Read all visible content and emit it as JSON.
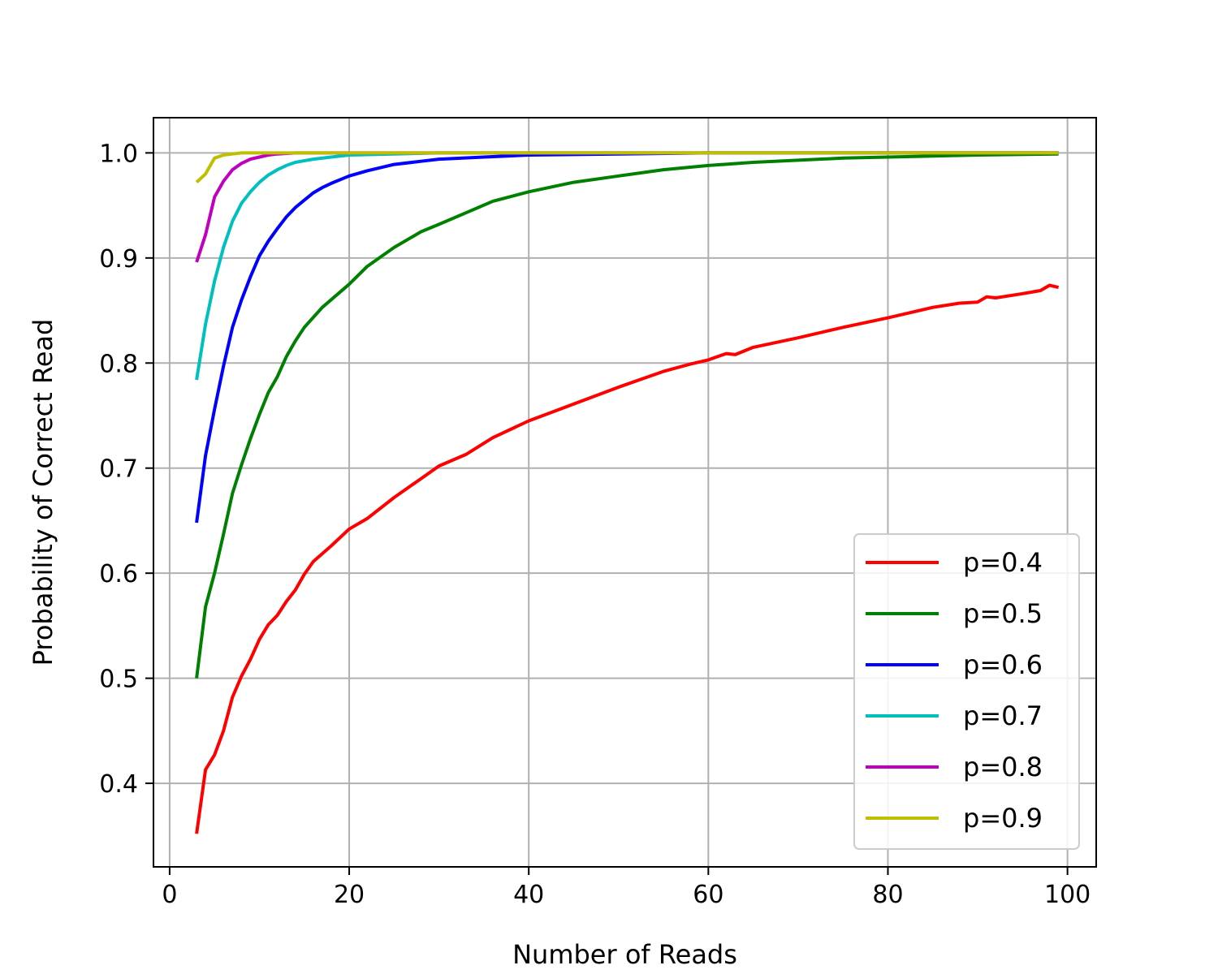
{
  "chart_data": {
    "type": "line",
    "xlabel": "Number of Reads",
    "ylabel": "Probability of Correct Read",
    "xlim": [
      -1.8,
      103.2
    ],
    "ylim": [
      0.3205,
      1.0335
    ],
    "xticks": [
      0,
      20,
      40,
      60,
      80,
      100
    ],
    "yticks": [
      0.4,
      0.5,
      0.6,
      0.7,
      0.8,
      0.9,
      1.0
    ],
    "xtick_labels": [
      "0",
      "20",
      "40",
      "60",
      "80",
      "100"
    ],
    "ytick_labels": [
      "0.4",
      "0.5",
      "0.6",
      "0.7",
      "0.8",
      "0.9",
      "1.0"
    ],
    "grid": true,
    "legend_position": "lower-right",
    "series": [
      {
        "name": "p=0.4",
        "color": "#ff0000",
        "points": [
          [
            3,
            0.352
          ],
          [
            4,
            0.413
          ],
          [
            5,
            0.427
          ],
          [
            6,
            0.45
          ],
          [
            7,
            0.482
          ],
          [
            8,
            0.502
          ],
          [
            9,
            0.518
          ],
          [
            10,
            0.537
          ],
          [
            11,
            0.551
          ],
          [
            12,
            0.56
          ],
          [
            13,
            0.573
          ],
          [
            14,
            0.584
          ],
          [
            15,
            0.599
          ],
          [
            16,
            0.611
          ],
          [
            18,
            0.626
          ],
          [
            20,
            0.642
          ],
          [
            22,
            0.652
          ],
          [
            25,
            0.672
          ],
          [
            28,
            0.69
          ],
          [
            30,
            0.702
          ],
          [
            33,
            0.713
          ],
          [
            36,
            0.729
          ],
          [
            40,
            0.745
          ],
          [
            45,
            0.761
          ],
          [
            50,
            0.777
          ],
          [
            55,
            0.792
          ],
          [
            58,
            0.799
          ],
          [
            60,
            0.803
          ],
          [
            62,
            0.809
          ],
          [
            63,
            0.808
          ],
          [
            65,
            0.815
          ],
          [
            70,
            0.824
          ],
          [
            75,
            0.834
          ],
          [
            80,
            0.843
          ],
          [
            85,
            0.853
          ],
          [
            88,
            0.857
          ],
          [
            90,
            0.858
          ],
          [
            91,
            0.863
          ],
          [
            92,
            0.862
          ],
          [
            95,
            0.866
          ],
          [
            97,
            0.869
          ],
          [
            98,
            0.874
          ],
          [
            99,
            0.872
          ]
        ]
      },
      {
        "name": "p=0.5",
        "color": "#008000",
        "points": [
          [
            3,
            0.5
          ],
          [
            4,
            0.568
          ],
          [
            5,
            0.6
          ],
          [
            6,
            0.637
          ],
          [
            7,
            0.676
          ],
          [
            8,
            0.703
          ],
          [
            9,
            0.728
          ],
          [
            10,
            0.751
          ],
          [
            11,
            0.772
          ],
          [
            12,
            0.787
          ],
          [
            13,
            0.806
          ],
          [
            14,
            0.821
          ],
          [
            15,
            0.834
          ],
          [
            17,
            0.853
          ],
          [
            20,
            0.875
          ],
          [
            22,
            0.892
          ],
          [
            25,
            0.91
          ],
          [
            28,
            0.925
          ],
          [
            30,
            0.932
          ],
          [
            33,
            0.943
          ],
          [
            36,
            0.954
          ],
          [
            40,
            0.963
          ],
          [
            45,
            0.972
          ],
          [
            50,
            0.978
          ],
          [
            55,
            0.984
          ],
          [
            60,
            0.988
          ],
          [
            65,
            0.991
          ],
          [
            70,
            0.993
          ],
          [
            75,
            0.995
          ],
          [
            80,
            0.996
          ],
          [
            90,
            0.998
          ],
          [
            99,
            0.999
          ]
        ]
      },
      {
        "name": "p=0.6",
        "color": "#0000ff",
        "points": [
          [
            3,
            0.648
          ],
          [
            4,
            0.712
          ],
          [
            5,
            0.756
          ],
          [
            6,
            0.797
          ],
          [
            7,
            0.834
          ],
          [
            8,
            0.86
          ],
          [
            9,
            0.882
          ],
          [
            10,
            0.902
          ],
          [
            11,
            0.916
          ],
          [
            12,
            0.928
          ],
          [
            13,
            0.939
          ],
          [
            14,
            0.948
          ],
          [
            15,
            0.955
          ],
          [
            16,
            0.962
          ],
          [
            17,
            0.967
          ],
          [
            18,
            0.971
          ],
          [
            20,
            0.978
          ],
          [
            22,
            0.983
          ],
          [
            25,
            0.989
          ],
          [
            28,
            0.992
          ],
          [
            30,
            0.994
          ],
          [
            35,
            0.996
          ],
          [
            40,
            0.998
          ],
          [
            50,
            0.999
          ],
          [
            60,
            1.0
          ],
          [
            99,
            1.0
          ]
        ]
      },
      {
        "name": "p=0.7",
        "color": "#00bfbf",
        "points": [
          [
            3,
            0.784
          ],
          [
            4,
            0.837
          ],
          [
            5,
            0.878
          ],
          [
            6,
            0.91
          ],
          [
            7,
            0.935
          ],
          [
            8,
            0.952
          ],
          [
            9,
            0.963
          ],
          [
            10,
            0.972
          ],
          [
            11,
            0.979
          ],
          [
            12,
            0.984
          ],
          [
            13,
            0.988
          ],
          [
            14,
            0.991
          ],
          [
            16,
            0.994
          ],
          [
            18,
            0.996
          ],
          [
            20,
            0.998
          ],
          [
            25,
            0.999
          ],
          [
            30,
            1.0
          ],
          [
            99,
            1.0
          ]
        ]
      },
      {
        "name": "p=0.8",
        "color": "#bf00bf",
        "points": [
          [
            3,
            0.896
          ],
          [
            4,
            0.922
          ],
          [
            5,
            0.958
          ],
          [
            6,
            0.973
          ],
          [
            7,
            0.984
          ],
          [
            8,
            0.99
          ],
          [
            9,
            0.994
          ],
          [
            10,
            0.996
          ],
          [
            11,
            0.998
          ],
          [
            12,
            0.999
          ],
          [
            14,
            1.0
          ],
          [
            99,
            1.0
          ]
        ]
      },
      {
        "name": "p=0.9",
        "color": "#bfbf00",
        "points": [
          [
            3,
            0.972
          ],
          [
            4,
            0.98
          ],
          [
            5,
            0.995
          ],
          [
            6,
            0.998
          ],
          [
            7,
            0.999
          ],
          [
            8,
            1.0
          ],
          [
            99,
            1.0
          ]
        ]
      }
    ]
  }
}
